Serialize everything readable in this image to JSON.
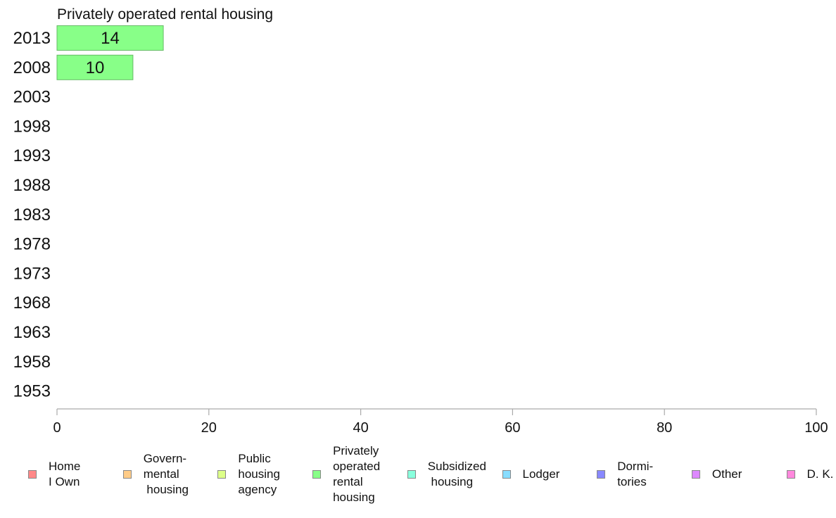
{
  "chart_data": {
    "type": "bar",
    "orientation": "horizontal",
    "title": "Privately operated rental housing",
    "categories": [
      "2013",
      "2008",
      "2003",
      "1998",
      "1993",
      "1988",
      "1983",
      "1978",
      "1973",
      "1968",
      "1963",
      "1958",
      "1953"
    ],
    "series": [
      {
        "name": "Privately operated rental housing",
        "values": [
          14,
          10,
          null,
          null,
          null,
          null,
          null,
          null,
          null,
          null,
          null,
          null,
          null
        ]
      }
    ],
    "data_labels": [
      "14",
      "10",
      "",
      "",
      "",
      "",
      "",
      "",
      "",
      "",
      "",
      "",
      ""
    ],
    "xlim": [
      0,
      100
    ],
    "xticks": [
      "0",
      "20",
      "40",
      "60",
      "80",
      "100"
    ],
    "xlabel": "",
    "ylabel": "",
    "grid": false,
    "bar_color": "#88ff88",
    "bar_edge_color": "#66bb66"
  },
  "legend": {
    "placement": "bottom",
    "items": [
      {
        "label": "Home\nI Own",
        "color": "#ff8888"
      },
      {
        "label": "Govern-\nmental\n housing",
        "color": "#ffcc88"
      },
      {
        "label": "Public\nhousing\nagency",
        "color": "#ddff88"
      },
      {
        "label": "Privately\noperated\nrental\nhousing",
        "color": "#88ff88"
      },
      {
        "label": "Subsidized\n housing",
        "color": "#88ffdd"
      },
      {
        "label": "Lodger",
        "color": "#88ddff"
      },
      {
        "label": "Dormi-\ntories",
        "color": "#8888ff"
      },
      {
        "label": "Other",
        "color": "#dd88ff"
      },
      {
        "label": "D. K.",
        "color": "#ff88dd"
      }
    ]
  }
}
